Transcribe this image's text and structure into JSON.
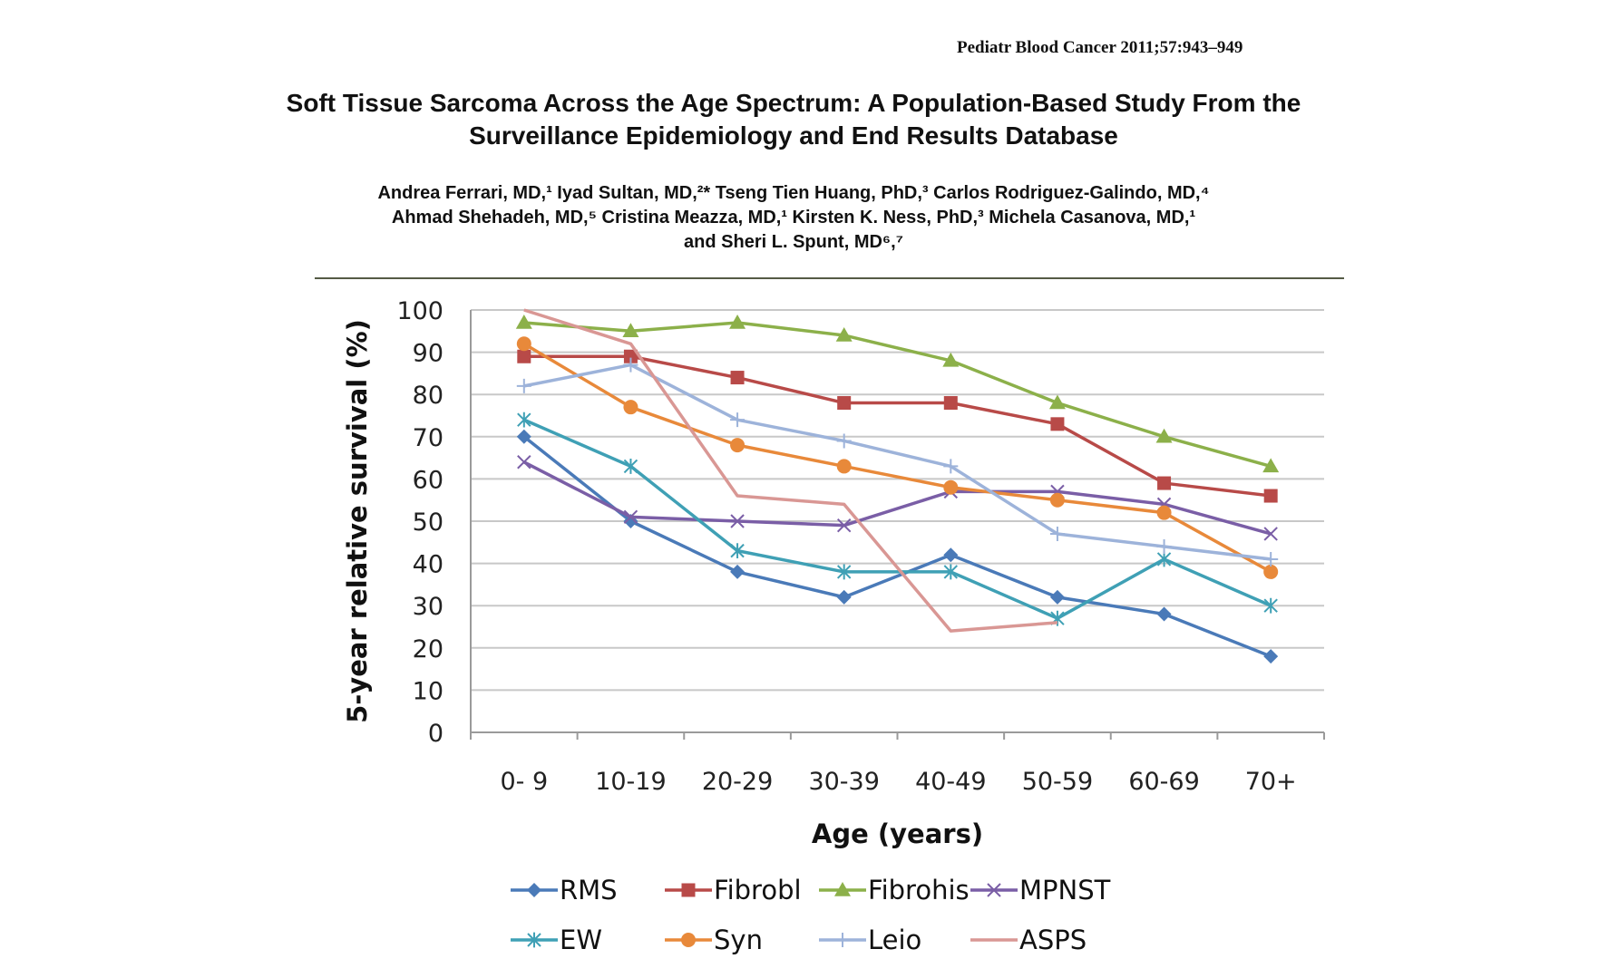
{
  "header": {
    "journal": "Pediatr Blood Cancer 2011;57:943–949",
    "title_line1": "Soft Tissue Sarcoma Across the Age Spectrum: A Population-Based Study From the",
    "title_line2": "Surveillance Epidemiology and End Results Database",
    "authors_line1": "Andrea Ferrari, MD,¹ Iyad Sultan, MD,²* Tseng Tien Huang, PhD,³ Carlos Rodriguez-Galindo, MD,⁴",
    "authors_line2": "Ahmad Shehadeh, MD,⁵ Cristina Meazza, MD,¹ Kirsten K. Ness, PhD,³ Michela Casanova, MD,¹",
    "authors_line3": "and Sheri L. Spunt, MD⁶,⁷"
  },
  "chart_data": {
    "type": "line",
    "title": "",
    "xlabel": "Age (years)",
    "ylabel": "5-year relative survival (%)",
    "ylim": [
      0,
      100
    ],
    "yticks": [
      0,
      10,
      20,
      30,
      40,
      50,
      60,
      70,
      80,
      90,
      100
    ],
    "categories": [
      "0- 9",
      "10-19",
      "20-29",
      "30-39",
      "40-49",
      "50-59",
      "60-69",
      "70+"
    ],
    "grid": "horizontal",
    "legend_position": "bottom",
    "series": [
      {
        "name": "RMS",
        "color": "#4a7ab8",
        "marker": "diamond",
        "values": [
          70,
          50,
          38,
          32,
          42,
          32,
          28,
          18
        ]
      },
      {
        "name": "Fibrobl",
        "color": "#b84a48",
        "marker": "square",
        "values": [
          89,
          89,
          84,
          78,
          78,
          73,
          59,
          56
        ]
      },
      {
        "name": "Fibrohis",
        "color": "#8cb04a",
        "marker": "triangle",
        "values": [
          97,
          95,
          97,
          94,
          88,
          78,
          70,
          63
        ]
      },
      {
        "name": "MPNST",
        "color": "#7a5ea6",
        "marker": "x",
        "values": [
          64,
          51,
          50,
          49,
          57,
          57,
          54,
          47
        ]
      },
      {
        "name": "EW",
        "color": "#3fa0b5",
        "marker": "asterisk",
        "values": [
          74,
          63,
          43,
          38,
          38,
          27,
          41,
          30
        ]
      },
      {
        "name": "Syn",
        "color": "#e8893a",
        "marker": "circle",
        "values": [
          92,
          77,
          68,
          63,
          58,
          55,
          52,
          38
        ]
      },
      {
        "name": "Leio",
        "color": "#9db3da",
        "marker": "plus",
        "values": [
          82,
          87,
          74,
          69,
          63,
          47,
          44,
          41
        ]
      },
      {
        "name": "ASPS",
        "color": "#d99794",
        "marker": "none",
        "values": [
          100,
          92,
          56,
          54,
          24,
          26,
          null,
          null
        ]
      }
    ]
  }
}
